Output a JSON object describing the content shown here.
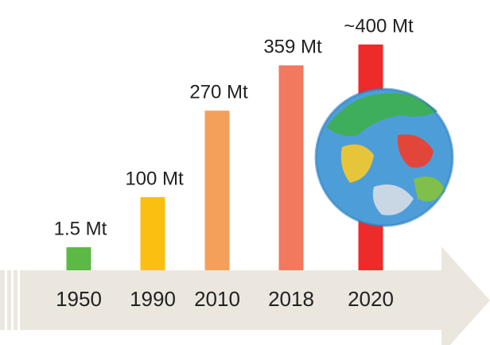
{
  "chart_data": {
    "type": "bar",
    "categories": [
      "1950",
      "1990",
      "2010",
      "2018",
      "2020"
    ],
    "values": [
      1.5,
      100,
      270,
      359,
      400
    ],
    "value_labels": [
      "1.5 Mt",
      "100 Mt",
      "270 Mt",
      "359 Mt",
      "~400 Mt"
    ],
    "colors": [
      "#5cb946",
      "#fbbf12",
      "#f5a05a",
      "#f2785e",
      "#ee2a2a"
    ]
  }
}
